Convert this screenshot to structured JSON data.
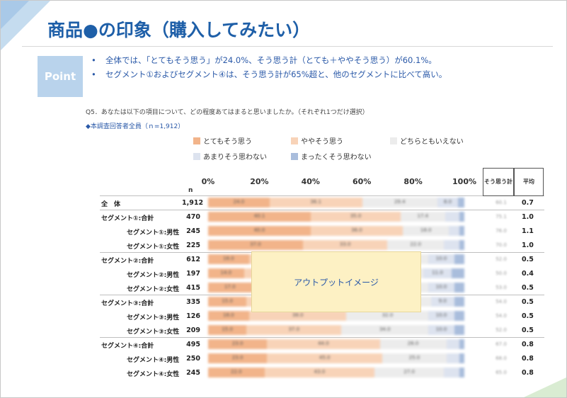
{
  "page": {
    "title": "商品●の印象（購入してみたい）",
    "point_label": "Point",
    "bullets": [
      "全体では、「とてもそう思う」が24.0%、そう思う計（とても＋ややそう思う）が60.1%。",
      "セグメント①およびセグメント④は、そう思う計が65%超と、他のセグメントに比べて高い。"
    ],
    "bullet_mark": "•",
    "question": "Q5．あなたは以下の項目について、どの程度あてはまると思いましたか。（それぞれ1つだけ選択）",
    "base": "◆本調査回答者全員（ｎ=1,912）",
    "overlay_text": "アウトプットイメージ"
  },
  "chart_data": {
    "type": "bar",
    "orientation": "horizontal-stacked-100",
    "legend_position": "top",
    "xlim": [
      0,
      100
    ],
    "x_ticks": [
      "0%",
      "20%",
      "40%",
      "60%",
      "80%",
      "100%"
    ],
    "n_header": "n",
    "extra_columns": [
      "そう思う計",
      "平均"
    ],
    "series": [
      {
        "name": "とてもそう思う",
        "color": "#f2b48a"
      },
      {
        "name": "ややそう思う",
        "color": "#f8d3b8"
      },
      {
        "name": "どちらともいえない",
        "color": "#ececec"
      },
      {
        "name": "あまりそう思わない",
        "color": "#dde3ef"
      },
      {
        "name": "まったくそう思わない",
        "color": "#a9bddc"
      }
    ],
    "rows": [
      {
        "label": "全　体",
        "n": "1,912",
        "values": [
          24.0,
          36.1,
          29.4,
          8.0,
          2.5
        ],
        "avg": "0.7",
        "group_start": true,
        "indent": false
      },
      {
        "label": "セグメント①:合計",
        "n": "470",
        "values": [
          40.1,
          35.0,
          17.4,
          5.5,
          2.0
        ],
        "avg": "1.0",
        "group_start": true,
        "indent": false
      },
      {
        "label": "セグメント①:男性",
        "n": "245",
        "values": [
          40.0,
          36.0,
          18.0,
          4.0,
          2.0
        ],
        "avg": "1.1",
        "group_start": false,
        "indent": true
      },
      {
        "label": "セグメント①:女性",
        "n": "225",
        "values": [
          37.0,
          33.0,
          22.0,
          6.0,
          2.0
        ],
        "avg": "1.0",
        "group_start": false,
        "indent": true
      },
      {
        "label": "セグメント②:合計",
        "n": "612",
        "values": [
          16.0,
          36.0,
          34.0,
          10.0,
          4.0
        ],
        "avg": "0.5",
        "group_start": true,
        "indent": false
      },
      {
        "label": "セグメント②:男性",
        "n": "197",
        "values": [
          14.0,
          36.0,
          34.0,
          11.0,
          5.0
        ],
        "avg": "0.4",
        "group_start": false,
        "indent": true
      },
      {
        "label": "セグメント②:女性",
        "n": "415",
        "values": [
          17.0,
          36.0,
          33.0,
          10.0,
          4.0
        ],
        "avg": "0.5",
        "group_start": false,
        "indent": true
      },
      {
        "label": "セグメント③:合計",
        "n": "335",
        "values": [
          15.0,
          39.0,
          33.0,
          9.0,
          4.0
        ],
        "avg": "0.5",
        "group_start": true,
        "indent": false
      },
      {
        "label": "セグメント③:男性",
        "n": "126",
        "values": [
          16.0,
          38.0,
          32.0,
          10.0,
          4.0
        ],
        "avg": "0.5",
        "group_start": false,
        "indent": true
      },
      {
        "label": "セグメント③:女性",
        "n": "209",
        "values": [
          15.0,
          37.0,
          34.0,
          10.0,
          4.0
        ],
        "avg": "0.5",
        "group_start": false,
        "indent": true
      },
      {
        "label": "セグメント④:合計",
        "n": "495",
        "values": [
          23.0,
          44.0,
          26.0,
          5.0,
          2.0
        ],
        "avg": "0.8",
        "group_start": true,
        "indent": false
      },
      {
        "label": "セグメント④:男性",
        "n": "250",
        "values": [
          23.0,
          45.0,
          25.0,
          5.0,
          2.0
        ],
        "avg": "0.8",
        "group_start": false,
        "indent": true
      },
      {
        "label": "セグメント④:女性",
        "n": "245",
        "values": [
          22.0,
          43.0,
          27.0,
          6.0,
          2.0
        ],
        "avg": "0.8",
        "group_start": false,
        "indent": true
      }
    ]
  }
}
